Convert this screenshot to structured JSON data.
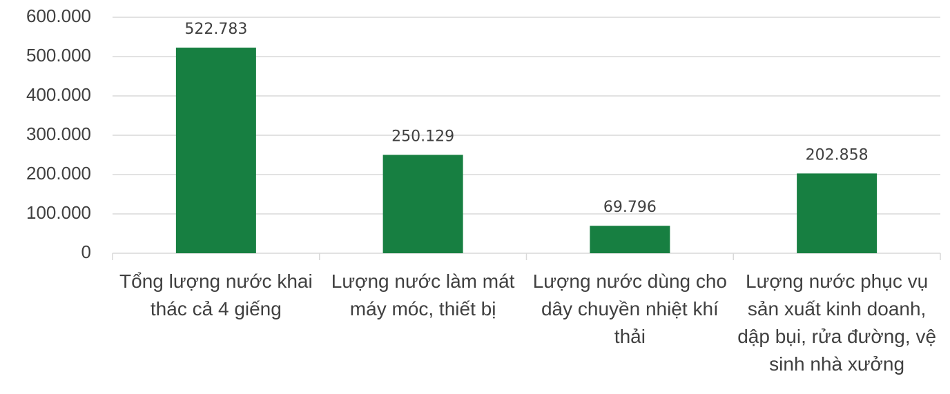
{
  "chart_data": {
    "type": "bar",
    "categories": [
      "Tổng lượng nước khai thác cả 4 giếng",
      "Lượng nước làm mát máy móc, thiết bị",
      "Lượng nước dùng cho dây chuyền nhiệt khí thải",
      "Lượng nước phục vụ sản xuất kinh doanh, dập bụi, rửa đường, vệ sinh nhà xưởng"
    ],
    "values": [
      522783,
      250129,
      69796,
      202858
    ],
    "value_labels": [
      "522.783",
      "250.129",
      "69.796",
      "202.858"
    ],
    "color": "#177f41",
    "ylim": [
      0,
      600000
    ],
    "yticks": [
      0,
      {
        "value": 100000,
        "label": "100.000"
      },
      {
        "value": 200000,
        "label": "200.000"
      },
      {
        "value": 300000,
        "label": "300.000"
      },
      {
        "value": 400000,
        "label": "400.000"
      },
      {
        "value": 500000,
        "label": "500.000"
      },
      {
        "value": 600000,
        "label": "600.000"
      }
    ],
    "grid": true
  }
}
